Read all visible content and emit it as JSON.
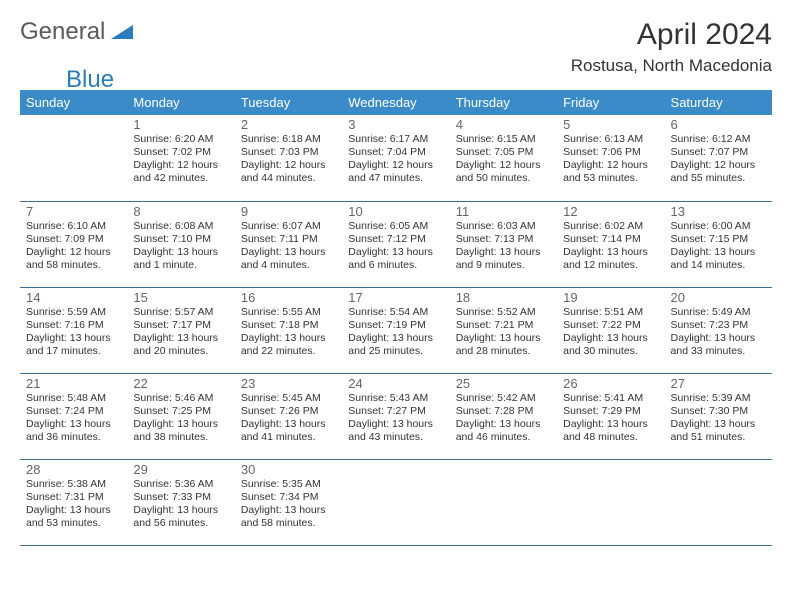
{
  "logo": {
    "general": "General",
    "blue": "Blue",
    "shape_color": "#2b7bbf"
  },
  "title": "April 2024",
  "location": "Rostusa, North Macedonia",
  "header_bg": "#3b8bc9",
  "header_fg": "#ffffff",
  "border_color": "#3b6e94",
  "daynum_color": "#666666",
  "text_color": "#333333",
  "background_color": "#ffffff",
  "columns": [
    "Sunday",
    "Monday",
    "Tuesday",
    "Wednesday",
    "Thursday",
    "Friday",
    "Saturday"
  ],
  "weeks": [
    [
      null,
      {
        "n": "1",
        "sr": "Sunrise: 6:20 AM",
        "ss": "Sunset: 7:02 PM",
        "d1": "Daylight: 12 hours",
        "d2": "and 42 minutes."
      },
      {
        "n": "2",
        "sr": "Sunrise: 6:18 AM",
        "ss": "Sunset: 7:03 PM",
        "d1": "Daylight: 12 hours",
        "d2": "and 44 minutes."
      },
      {
        "n": "3",
        "sr": "Sunrise: 6:17 AM",
        "ss": "Sunset: 7:04 PM",
        "d1": "Daylight: 12 hours",
        "d2": "and 47 minutes."
      },
      {
        "n": "4",
        "sr": "Sunrise: 6:15 AM",
        "ss": "Sunset: 7:05 PM",
        "d1": "Daylight: 12 hours",
        "d2": "and 50 minutes."
      },
      {
        "n": "5",
        "sr": "Sunrise: 6:13 AM",
        "ss": "Sunset: 7:06 PM",
        "d1": "Daylight: 12 hours",
        "d2": "and 53 minutes."
      },
      {
        "n": "6",
        "sr": "Sunrise: 6:12 AM",
        "ss": "Sunset: 7:07 PM",
        "d1": "Daylight: 12 hours",
        "d2": "and 55 minutes."
      }
    ],
    [
      {
        "n": "7",
        "sr": "Sunrise: 6:10 AM",
        "ss": "Sunset: 7:09 PM",
        "d1": "Daylight: 12 hours",
        "d2": "and 58 minutes."
      },
      {
        "n": "8",
        "sr": "Sunrise: 6:08 AM",
        "ss": "Sunset: 7:10 PM",
        "d1": "Daylight: 13 hours",
        "d2": "and 1 minute."
      },
      {
        "n": "9",
        "sr": "Sunrise: 6:07 AM",
        "ss": "Sunset: 7:11 PM",
        "d1": "Daylight: 13 hours",
        "d2": "and 4 minutes."
      },
      {
        "n": "10",
        "sr": "Sunrise: 6:05 AM",
        "ss": "Sunset: 7:12 PM",
        "d1": "Daylight: 13 hours",
        "d2": "and 6 minutes."
      },
      {
        "n": "11",
        "sr": "Sunrise: 6:03 AM",
        "ss": "Sunset: 7:13 PM",
        "d1": "Daylight: 13 hours",
        "d2": "and 9 minutes."
      },
      {
        "n": "12",
        "sr": "Sunrise: 6:02 AM",
        "ss": "Sunset: 7:14 PM",
        "d1": "Daylight: 13 hours",
        "d2": "and 12 minutes."
      },
      {
        "n": "13",
        "sr": "Sunrise: 6:00 AM",
        "ss": "Sunset: 7:15 PM",
        "d1": "Daylight: 13 hours",
        "d2": "and 14 minutes."
      }
    ],
    [
      {
        "n": "14",
        "sr": "Sunrise: 5:59 AM",
        "ss": "Sunset: 7:16 PM",
        "d1": "Daylight: 13 hours",
        "d2": "and 17 minutes."
      },
      {
        "n": "15",
        "sr": "Sunrise: 5:57 AM",
        "ss": "Sunset: 7:17 PM",
        "d1": "Daylight: 13 hours",
        "d2": "and 20 minutes."
      },
      {
        "n": "16",
        "sr": "Sunrise: 5:55 AM",
        "ss": "Sunset: 7:18 PM",
        "d1": "Daylight: 13 hours",
        "d2": "and 22 minutes."
      },
      {
        "n": "17",
        "sr": "Sunrise: 5:54 AM",
        "ss": "Sunset: 7:19 PM",
        "d1": "Daylight: 13 hours",
        "d2": "and 25 minutes."
      },
      {
        "n": "18",
        "sr": "Sunrise: 5:52 AM",
        "ss": "Sunset: 7:21 PM",
        "d1": "Daylight: 13 hours",
        "d2": "and 28 minutes."
      },
      {
        "n": "19",
        "sr": "Sunrise: 5:51 AM",
        "ss": "Sunset: 7:22 PM",
        "d1": "Daylight: 13 hours",
        "d2": "and 30 minutes."
      },
      {
        "n": "20",
        "sr": "Sunrise: 5:49 AM",
        "ss": "Sunset: 7:23 PM",
        "d1": "Daylight: 13 hours",
        "d2": "and 33 minutes."
      }
    ],
    [
      {
        "n": "21",
        "sr": "Sunrise: 5:48 AM",
        "ss": "Sunset: 7:24 PM",
        "d1": "Daylight: 13 hours",
        "d2": "and 36 minutes."
      },
      {
        "n": "22",
        "sr": "Sunrise: 5:46 AM",
        "ss": "Sunset: 7:25 PM",
        "d1": "Daylight: 13 hours",
        "d2": "and 38 minutes."
      },
      {
        "n": "23",
        "sr": "Sunrise: 5:45 AM",
        "ss": "Sunset: 7:26 PM",
        "d1": "Daylight: 13 hours",
        "d2": "and 41 minutes."
      },
      {
        "n": "24",
        "sr": "Sunrise: 5:43 AM",
        "ss": "Sunset: 7:27 PM",
        "d1": "Daylight: 13 hours",
        "d2": "and 43 minutes."
      },
      {
        "n": "25",
        "sr": "Sunrise: 5:42 AM",
        "ss": "Sunset: 7:28 PM",
        "d1": "Daylight: 13 hours",
        "d2": "and 46 minutes."
      },
      {
        "n": "26",
        "sr": "Sunrise: 5:41 AM",
        "ss": "Sunset: 7:29 PM",
        "d1": "Daylight: 13 hours",
        "d2": "and 48 minutes."
      },
      {
        "n": "27",
        "sr": "Sunrise: 5:39 AM",
        "ss": "Sunset: 7:30 PM",
        "d1": "Daylight: 13 hours",
        "d2": "and 51 minutes."
      }
    ],
    [
      {
        "n": "28",
        "sr": "Sunrise: 5:38 AM",
        "ss": "Sunset: 7:31 PM",
        "d1": "Daylight: 13 hours",
        "d2": "and 53 minutes."
      },
      {
        "n": "29",
        "sr": "Sunrise: 5:36 AM",
        "ss": "Sunset: 7:33 PM",
        "d1": "Daylight: 13 hours",
        "d2": "and 56 minutes."
      },
      {
        "n": "30",
        "sr": "Sunrise: 5:35 AM",
        "ss": "Sunset: 7:34 PM",
        "d1": "Daylight: 13 hours",
        "d2": "and 58 minutes."
      },
      null,
      null,
      null,
      null
    ]
  ]
}
